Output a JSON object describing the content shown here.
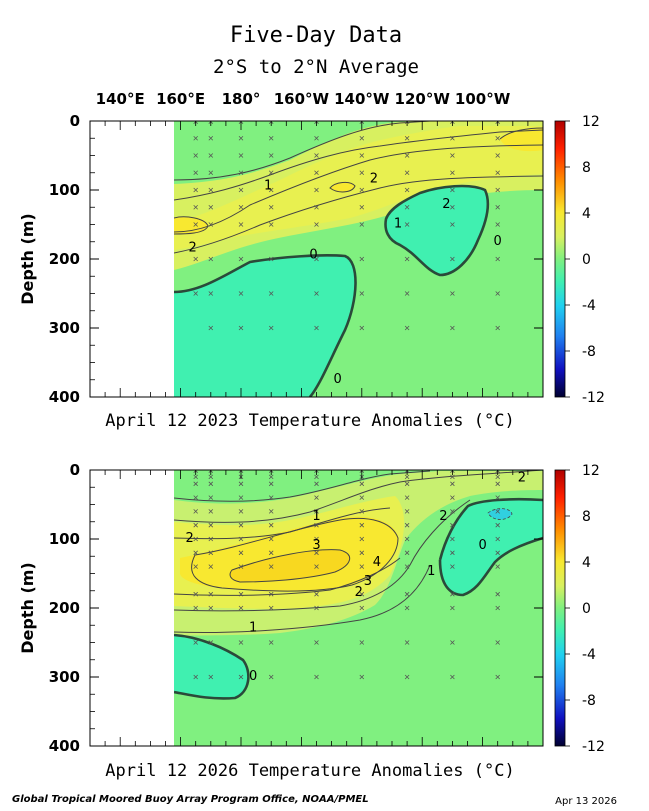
{
  "title": "Five-Day Data",
  "subtitle": "2°S to 2°N Average",
  "longitudes": [
    "140°E",
    "160°E",
    "180°",
    "160°W",
    "140°W",
    "120°W",
    "100°W"
  ],
  "footer": {
    "credit": "Global Tropical Moored Buoy Array Program Office, NOAA/PMEL",
    "date": "Apr 13 2026"
  },
  "colors": {
    "background_anomaly": "#80f080",
    "positive_yellow": "#e8f060",
    "warm_yellow": "#f8e830",
    "negative_teal": "#40f0b0",
    "contour": "#333333"
  },
  "chart_data": [
    {
      "type": "heatmap",
      "title": "April 12 2023 Temperature Anomalies (°C)",
      "ylabel": "Depth (m)",
      "ylim": [
        400,
        0
      ],
      "yticks": [
        "0",
        "100",
        "200",
        "300",
        "400"
      ],
      "colorbar": {
        "range": [
          -12,
          12
        ],
        "ticks": [
          "12",
          "8",
          "4",
          "0",
          "-4",
          "-8",
          "-12"
        ]
      },
      "contour_labels": [
        {
          "text": "2",
          "lon": 224,
          "depth": 85
        },
        {
          "text": "1",
          "lon": 189,
          "depth": 95
        },
        {
          "text": "2",
          "lon": 248,
          "depth": 122
        },
        {
          "text": "1",
          "lon": 232,
          "depth": 150
        },
        {
          "text": "2",
          "lon": 164,
          "depth": 185
        },
        {
          "text": "0",
          "lon": 204,
          "depth": 195
        },
        {
          "text": "0",
          "lon": 265,
          "depth": 175
        },
        {
          "text": "0",
          "lon": 212,
          "depth": 375
        }
      ]
    },
    {
      "type": "heatmap",
      "title": "April 12 2026 Temperature Anomalies (°C)",
      "ylabel": "Depth (m)",
      "ylim": [
        400,
        0
      ],
      "yticks": [
        "0",
        "100",
        "200",
        "300",
        "400"
      ],
      "colorbar": {
        "range": [
          -12,
          12
        ],
        "ticks": [
          "12",
          "8",
          "4",
          "0",
          "-4",
          "-8",
          "-12"
        ]
      },
      "contour_labels": [
        {
          "text": "2",
          "lon": 273,
          "depth": 12
        },
        {
          "text": "2",
          "lon": 247,
          "depth": 68
        },
        {
          "text": "1",
          "lon": 205,
          "depth": 68
        },
        {
          "text": "0",
          "lon": 260,
          "depth": 110
        },
        {
          "text": "2",
          "lon": 163,
          "depth": 100
        },
        {
          "text": "3",
          "lon": 205,
          "depth": 110
        },
        {
          "text": "4",
          "lon": 225,
          "depth": 135
        },
        {
          "text": "3",
          "lon": 222,
          "depth": 162
        },
        {
          "text": "2",
          "lon": 219,
          "depth": 178
        },
        {
          "text": "1",
          "lon": 243,
          "depth": 148
        },
        {
          "text": "1",
          "lon": 184,
          "depth": 230
        },
        {
          "text": "0",
          "lon": 184,
          "depth": 300
        }
      ]
    }
  ]
}
